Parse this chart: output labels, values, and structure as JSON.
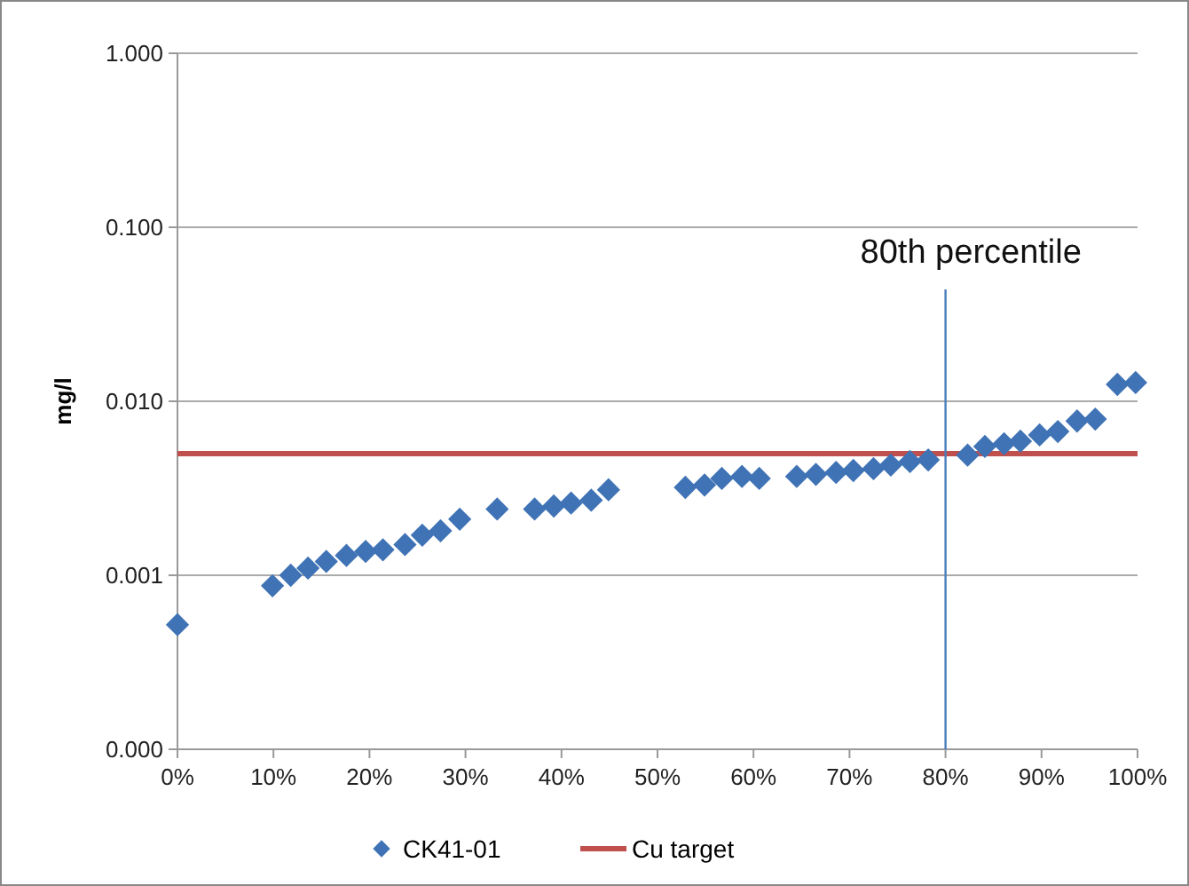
{
  "chart_data": {
    "type": "scatter",
    "ylabel": "mg/l",
    "log": "y",
    "grid": "y",
    "legend": "bottom",
    "xlim": [
      0,
      100
    ],
    "xticks": [
      {
        "value": 0,
        "label": "0%"
      },
      {
        "value": 10,
        "label": "10%"
      },
      {
        "value": 20,
        "label": "20%"
      },
      {
        "value": 30,
        "label": "30%"
      },
      {
        "value": 40,
        "label": "40%"
      },
      {
        "value": 50,
        "label": "50%"
      },
      {
        "value": 60,
        "label": "60%"
      },
      {
        "value": 70,
        "label": "70%"
      },
      {
        "value": 80,
        "label": "80%"
      },
      {
        "value": 90,
        "label": "90%"
      },
      {
        "value": 100,
        "label": "100%"
      }
    ],
    "ylim": [
      0.0001,
      1
    ],
    "yticks": [
      {
        "value": 0.0001,
        "label": "0.000"
      },
      {
        "value": 0.001,
        "label": "0.001"
      },
      {
        "value": 0.01,
        "label": "0.010"
      },
      {
        "value": 0.1,
        "label": "0.100"
      },
      {
        "value": 1,
        "label": "1.000"
      }
    ],
    "series": [
      {
        "name": "CK41-01",
        "marker": "diamond",
        "color": "#3f73b5",
        "x": [
          0,
          9.9,
          11.8,
          13.6,
          15.5,
          17.6,
          19.6,
          21.4,
          23.7,
          25.5,
          27.4,
          29.4,
          33.3,
          37.2,
          39.2,
          41.0,
          43.1,
          44.9,
          52.9,
          54.9,
          56.7,
          58.8,
          60.6,
          64.5,
          66.5,
          68.6,
          70.4,
          72.5,
          74.3,
          76.3,
          78.2,
          82.3,
          84.1,
          86.1,
          87.8,
          89.8,
          91.7,
          93.7,
          95.6,
          97.9,
          99.8
        ],
        "values": [
          0.00052,
          0.00087,
          0.001,
          0.0011,
          0.0012,
          0.0013,
          0.00137,
          0.0014,
          0.0015,
          0.0017,
          0.0018,
          0.0021,
          0.0024,
          0.0024,
          0.0025,
          0.0026,
          0.0027,
          0.0031,
          0.0032,
          0.0033,
          0.0036,
          0.0037,
          0.0036,
          0.0037,
          0.0038,
          0.0039,
          0.004,
          0.0041,
          0.0043,
          0.0045,
          0.0046,
          0.0049,
          0.0055,
          0.0057,
          0.0059,
          0.0064,
          0.0067,
          0.0077,
          0.0079,
          0.0125,
          0.0128
        ]
      },
      {
        "name": "Cu target",
        "type": "line",
        "marker": "none",
        "color": "#c0504d",
        "x": [
          0,
          100
        ],
        "values": [
          0.005,
          0.005
        ]
      }
    ],
    "ref_lines": [
      {
        "axis": "x",
        "value": 80,
        "label": "80th percentile",
        "color": "#4a7ebb"
      }
    ]
  }
}
